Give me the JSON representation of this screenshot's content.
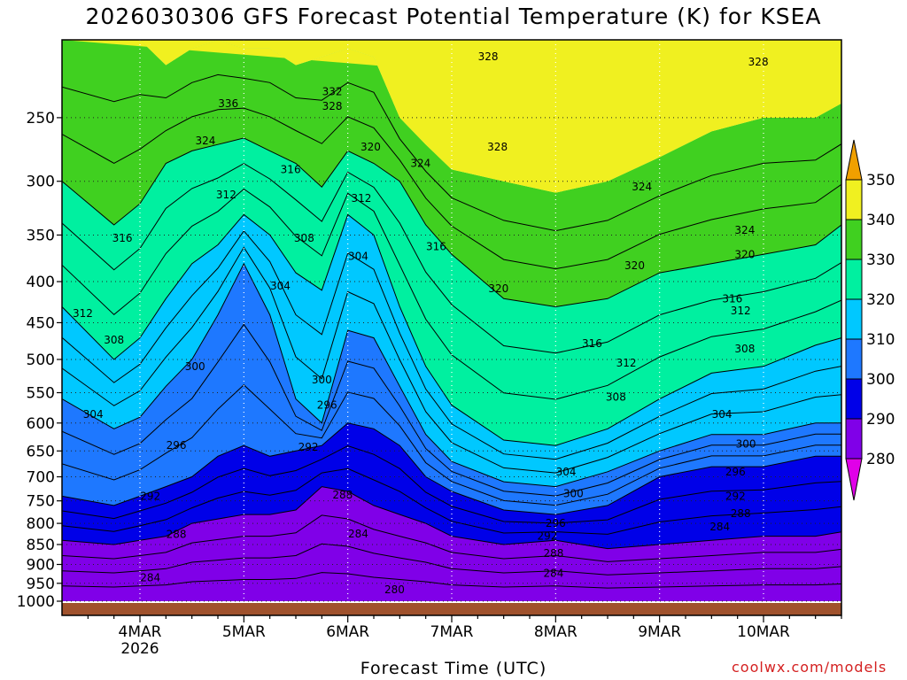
{
  "title": "2026030306 GFS Forecast Potential Temperature (K) for KSEA",
  "xlabel": "Forecast Time (UTC)",
  "credit": "coolwx.com/models",
  "colors": {
    "bands": [
      {
        "min": 270,
        "max": 280,
        "color": "#e000e8"
      },
      {
        "min": 280,
        "max": 290,
        "color": "#8000e8"
      },
      {
        "min": 290,
        "max": 300,
        "color": "#0000e8"
      },
      {
        "min": 300,
        "max": 310,
        "color": "#1e78ff"
      },
      {
        "min": 310,
        "max": 320,
        "color": "#00c8ff"
      },
      {
        "min": 320,
        "max": 330,
        "color": "#00f0a0"
      },
      {
        "min": 330,
        "max": 340,
        "color": "#40d020"
      },
      {
        "min": 340,
        "max": 350,
        "color": "#f0f020"
      },
      {
        "min": 350,
        "max": 360,
        "color": "#f0a000"
      }
    ],
    "ground": "#a0522d"
  },
  "chart_data": {
    "type": "heatmap",
    "title": "2026030306 GFS Forecast Potential Temperature (K) for KSEA",
    "xlabel": "Forecast Time (UTC)",
    "ylabel": "",
    "x_ticks": [
      {
        "day": 4,
        "label": "4MAR",
        "sublabel": "2026"
      },
      {
        "day": 5,
        "label": "5MAR",
        "sublabel": ""
      },
      {
        "day": 6,
        "label": "6MAR",
        "sublabel": ""
      },
      {
        "day": 7,
        "label": "7MAR",
        "sublabel": ""
      },
      {
        "day": 8,
        "label": "8MAR",
        "sublabel": ""
      },
      {
        "day": 9,
        "label": "9MAR",
        "sublabel": ""
      },
      {
        "day": 10,
        "label": "10MAR",
        "sublabel": ""
      }
    ],
    "xlim": [
      3.25,
      10.75
    ],
    "y_ticks": [
      250,
      300,
      350,
      400,
      450,
      500,
      550,
      600,
      650,
      700,
      750,
      800,
      850,
      900,
      950,
      1000
    ],
    "ylim": [
      200,
      1000
    ],
    "y_scale": "pressure (log), inverted",
    "colorbar": {
      "levels": [
        280,
        290,
        300,
        310,
        320,
        330,
        340,
        350
      ],
      "labels": [
        "280",
        "290",
        "300",
        "310",
        "320",
        "330",
        "340",
        "350"
      ],
      "extend": "both"
    },
    "contour_interval": 4,
    "series": [
      {
        "values": [
          {
            "x": 3.25,
            "p": [
              1000,
              840,
              740,
              560,
              430,
              300,
              200
            ]
          },
          {
            "x": 3.75,
            "p": [
              1000,
              850,
              760,
              610,
              500,
              340,
              200
            ]
          },
          {
            "x": 4.0,
            "p": [
              1000,
              840,
              740,
              590,
              470,
              320,
              200
            ]
          },
          {
            "x": 4.25,
            "p": [
              1000,
              830,
              720,
              540,
              420,
              285,
              215
            ]
          },
          {
            "x": 4.5,
            "p": [
              1000,
              800,
              700,
              500,
              380,
              275,
              205
            ]
          },
          {
            "x": 4.75,
            "p": [
              1000,
              790,
              660,
              440,
              360,
              270,
              200
            ]
          },
          {
            "x": 5.0,
            "p": [
              1000,
              780,
              640,
              380,
              330,
              265,
              205
            ]
          },
          {
            "x": 5.25,
            "p": [
              1000,
              780,
              660,
              440,
              350,
              275,
              205
            ]
          },
          {
            "x": 5.5,
            "p": [
              1000,
              770,
              650,
              560,
              390,
              285,
              215
            ]
          },
          {
            "x": 5.75,
            "p": [
              1000,
              720,
              640,
              600,
              410,
              305,
              210
            ]
          },
          {
            "x": 6.0,
            "p": [
              1000,
              730,
              600,
              460,
              330,
              275,
              205
            ]
          },
          {
            "x": 6.25,
            "p": [
              1000,
              760,
              610,
              470,
              350,
              285,
              210
            ]
          },
          {
            "x": 6.5,
            "p": [
              1000,
              780,
              640,
              540,
              430,
              300,
              250
            ]
          },
          {
            "x": 6.75,
            "p": [
              1000,
              800,
              700,
              620,
              510,
              340,
              270
            ]
          },
          {
            "x": 7.0,
            "p": [
              1000,
              830,
              730,
              670,
              570,
              370,
              290
            ]
          },
          {
            "x": 7.5,
            "p": [
              1000,
              850,
              770,
              710,
              630,
              420,
              300
            ]
          },
          {
            "x": 8.0,
            "p": [
              1000,
              840,
              780,
              720,
              640,
              430,
              310
            ]
          },
          {
            "x": 8.5,
            "p": [
              1000,
              860,
              760,
              690,
              610,
              420,
              300
            ]
          },
          {
            "x": 9.0,
            "p": [
              1000,
              850,
              700,
              650,
              560,
              390,
              280
            ]
          },
          {
            "x": 9.5,
            "p": [
              1000,
              840,
              680,
              620,
              520,
              380,
              260
            ]
          },
          {
            "x": 10.0,
            "p": [
              1000,
              830,
              680,
              620,
              510,
              370,
              250
            ]
          },
          {
            "x": 10.5,
            "p": [
              1000,
              830,
              660,
              600,
              480,
              360,
              250
            ]
          },
          {
            "x": 10.75,
            "p": [
              1000,
              820,
              660,
              600,
              470,
              340,
              240
            ]
          }
        ]
      }
    ],
    "boundary_levels": [
      280,
      290,
      300,
      310,
      320,
      330,
      340
    ],
    "contour_labels": [
      {
        "x": 5.85,
        "p": 232,
        "text": "332"
      },
      {
        "x": 5.85,
        "p": 242,
        "text": "328"
      },
      {
        "x": 4.85,
        "p": 240,
        "text": "336"
      },
      {
        "x": 7.35,
        "p": 210,
        "text": "328"
      },
      {
        "x": 9.95,
        "p": 213,
        "text": "328"
      },
      {
        "x": 7.44,
        "p": 272,
        "text": "328"
      },
      {
        "x": 4.63,
        "p": 267,
        "text": "324"
      },
      {
        "x": 6.22,
        "p": 272,
        "text": "320"
      },
      {
        "x": 6.7,
        "p": 285,
        "text": "324"
      },
      {
        "x": 5.45,
        "p": 290,
        "text": "316"
      },
      {
        "x": 8.83,
        "p": 305,
        "text": "324"
      },
      {
        "x": 4.83,
        "p": 312,
        "text": "312"
      },
      {
        "x": 6.13,
        "p": 315,
        "text": "312"
      },
      {
        "x": 3.83,
        "p": 353,
        "text": "316"
      },
      {
        "x": 5.58,
        "p": 353,
        "text": "308"
      },
      {
        "x": 6.1,
        "p": 372,
        "text": "304"
      },
      {
        "x": 6.85,
        "p": 362,
        "text": "316"
      },
      {
        "x": 9.82,
        "p": 345,
        "text": "324"
      },
      {
        "x": 9.82,
        "p": 370,
        "text": "320"
      },
      {
        "x": 8.76,
        "p": 382,
        "text": "320"
      },
      {
        "x": 5.35,
        "p": 405,
        "text": "304"
      },
      {
        "x": 7.45,
        "p": 408,
        "text": "320"
      },
      {
        "x": 9.7,
        "p": 420,
        "text": "316"
      },
      {
        "x": 9.78,
        "p": 435,
        "text": "312"
      },
      {
        "x": 3.45,
        "p": 438,
        "text": "312"
      },
      {
        "x": 3.75,
        "p": 473,
        "text": "308"
      },
      {
        "x": 8.35,
        "p": 478,
        "text": "316"
      },
      {
        "x": 9.82,
        "p": 485,
        "text": "308"
      },
      {
        "x": 4.53,
        "p": 510,
        "text": "300"
      },
      {
        "x": 5.75,
        "p": 530,
        "text": "300"
      },
      {
        "x": 8.68,
        "p": 505,
        "text": "312"
      },
      {
        "x": 8.58,
        "p": 557,
        "text": "308"
      },
      {
        "x": 5.8,
        "p": 570,
        "text": "296"
      },
      {
        "x": 3.55,
        "p": 585,
        "text": "304"
      },
      {
        "x": 9.6,
        "p": 585,
        "text": "304"
      },
      {
        "x": 4.35,
        "p": 640,
        "text": "296"
      },
      {
        "x": 5.62,
        "p": 643,
        "text": "292"
      },
      {
        "x": 9.83,
        "p": 637,
        "text": "300"
      },
      {
        "x": 8.1,
        "p": 690,
        "text": "304"
      },
      {
        "x": 8.17,
        "p": 735,
        "text": "300"
      },
      {
        "x": 9.73,
        "p": 690,
        "text": "296"
      },
      {
        "x": 4.1,
        "p": 740,
        "text": "292"
      },
      {
        "x": 5.95,
        "p": 737,
        "text": "288"
      },
      {
        "x": 9.73,
        "p": 740,
        "text": "292"
      },
      {
        "x": 9.78,
        "p": 778,
        "text": "288"
      },
      {
        "x": 8.0,
        "p": 800,
        "text": "296"
      },
      {
        "x": 4.35,
        "p": 826,
        "text": "288"
      },
      {
        "x": 6.1,
        "p": 825,
        "text": "284"
      },
      {
        "x": 7.92,
        "p": 830,
        "text": "292"
      },
      {
        "x": 9.58,
        "p": 808,
        "text": "284"
      },
      {
        "x": 7.98,
        "p": 872,
        "text": "288"
      },
      {
        "x": 7.98,
        "p": 923,
        "text": "284"
      },
      {
        "x": 4.1,
        "p": 935,
        "text": "284"
      },
      {
        "x": 6.45,
        "p": 968,
        "text": "280"
      }
    ]
  }
}
